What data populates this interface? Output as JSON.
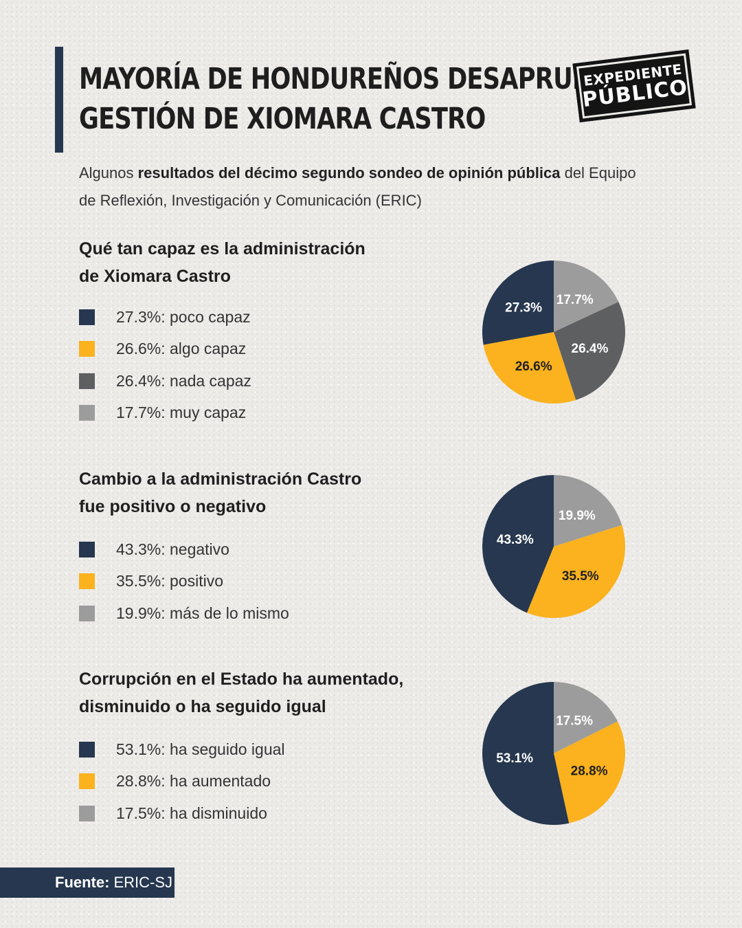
{
  "header": {
    "title_line1": "MAYORÍA DE HONDUREÑOS DESAPRUEBA",
    "title_line2": "GESTIÓN DE XIOMARA CASTRO",
    "logo_line1": "EXPEDIENTE",
    "logo_line2": "PÚBLICO"
  },
  "subtitle": {
    "pre": "Algunos ",
    "bold": "resultados del décimo segundo sondeo de opinión pública",
    "post": " del Equipo de Reflexión, Investigación y Comunicación (ERIC)"
  },
  "colors": {
    "navy": "#26374f",
    "yellow": "#fbb21e",
    "dark_gray": "#5e5f61",
    "light_gray": "#9c9c9c"
  },
  "chart_data": [
    {
      "type": "pie",
      "title_line1": "Qué tan capaz es la administración",
      "title_line2": "de Xiomara Castro",
      "slices": [
        {
          "label": "poco capaz",
          "value": 27.3,
          "display": "27.3%",
          "legend": "27.3%: poco capaz",
          "color": "#26374f"
        },
        {
          "label": "algo capaz",
          "value": 26.6,
          "display": "26.6%",
          "legend": "26.6%: algo capaz",
          "color": "#fbb21e"
        },
        {
          "label": "nada capaz",
          "value": 26.4,
          "display": "26.4%",
          "legend": "26.4%: nada capaz",
          "color": "#5e5f61"
        },
        {
          "label": "muy capaz",
          "value": 17.7,
          "display": "17.7%",
          "legend": "17.7%: muy capaz",
          "color": "#9c9c9c"
        }
      ],
      "draw_order": [
        3,
        2,
        1,
        0
      ]
    },
    {
      "type": "pie",
      "title_line1": "Cambio a la administración Castro",
      "title_line2": "fue positivo o negativo",
      "slices": [
        {
          "label": "negativo",
          "value": 43.3,
          "display": "43.3%",
          "legend": "43.3%: negativo",
          "color": "#26374f"
        },
        {
          "label": "positivo",
          "value": 35.5,
          "display": "35.5%",
          "legend": "35.5%: positivo",
          "color": "#fbb21e"
        },
        {
          "label": "más de lo mismo",
          "value": 19.9,
          "display": "19.9%",
          "legend": "19.9%: más de lo mismo",
          "color": "#9c9c9c"
        }
      ],
      "draw_order": [
        2,
        1,
        0
      ]
    },
    {
      "type": "pie",
      "title_line1": "Corrupción en el Estado ha aumentado,",
      "title_line2": "disminuido o ha seguido igual",
      "slices": [
        {
          "label": "ha seguido igual",
          "value": 53.1,
          "display": "53.1%",
          "legend": "53.1%: ha seguido igual",
          "color": "#26374f"
        },
        {
          "label": "ha aumentado",
          "value": 28.8,
          "display": "28.8%",
          "legend": "28.8%: ha aumentado",
          "color": "#fbb21e"
        },
        {
          "label": "ha disminuido",
          "value": 17.5,
          "display": "17.5%",
          "legend": "17.5%: ha disminuido",
          "color": "#9c9c9c"
        }
      ],
      "draw_order": [
        2,
        1,
        0
      ]
    }
  ],
  "source": {
    "label": "Fuente:",
    "value": "ERIC-SJ"
  }
}
